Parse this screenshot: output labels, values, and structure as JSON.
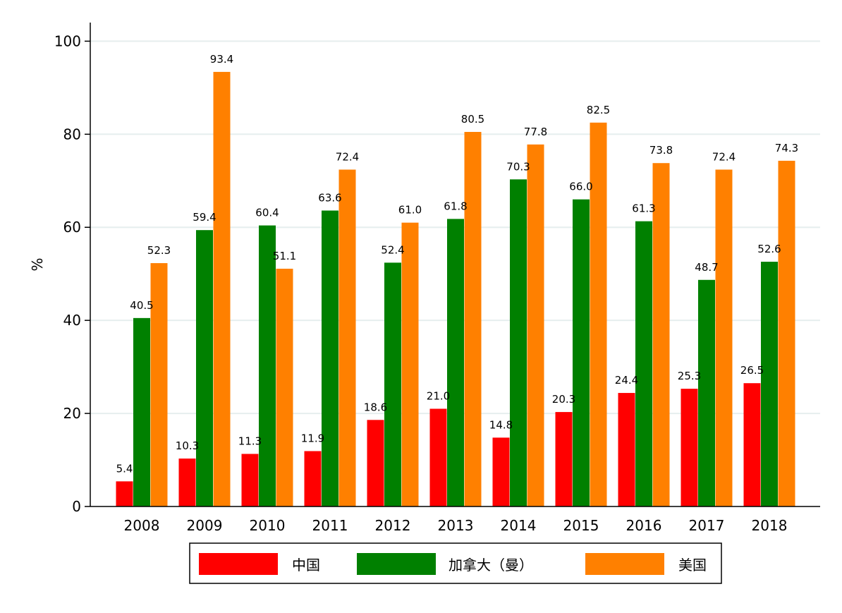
{
  "chart_data": {
    "type": "bar",
    "categories": [
      "2008",
      "2009",
      "2010",
      "2011",
      "2012",
      "2013",
      "2014",
      "2015",
      "2016",
      "2017",
      "2018"
    ],
    "series": [
      {
        "name": "中国",
        "color": "#ff0000",
        "values": [
          5.4,
          10.3,
          11.3,
          11.9,
          18.6,
          21.0,
          14.8,
          20.3,
          24.4,
          25.3,
          26.5
        ],
        "labels": [
          "5.4",
          "10.3",
          "11.3",
          "11.9",
          "18.6",
          "21.0",
          "14.8",
          "20.3",
          "24.4",
          "25.3",
          "26.5"
        ]
      },
      {
        "name": "加拿大（曼）",
        "color": "#008000",
        "values": [
          40.5,
          59.4,
          60.4,
          63.6,
          52.4,
          61.8,
          70.3,
          66.0,
          61.3,
          48.7,
          52.6
        ],
        "labels": [
          "40.5",
          "59.4",
          "60.4",
          "63.6",
          "52.4",
          "61.8",
          "70.3",
          "66.0",
          "61.3",
          "48.7",
          "52.6"
        ]
      },
      {
        "name": "美国",
        "color": "#ff8000",
        "values": [
          52.3,
          93.4,
          51.1,
          72.4,
          61.0,
          80.5,
          77.8,
          82.5,
          73.8,
          72.4,
          74.3
        ],
        "labels": [
          "52.3",
          "93.4",
          "51.1",
          "72.4",
          "61.0",
          "80.5",
          "77.8",
          "82.5",
          "73.8",
          "72.4",
          "74.3"
        ]
      }
    ],
    "ylabel": "%",
    "ylim": [
      0,
      104
    ],
    "yticks": [
      0,
      20,
      40,
      60,
      80,
      100
    ],
    "ytick_labels": [
      "0",
      "20",
      "40",
      "60",
      "80",
      "100"
    ],
    "grid": true,
    "legend_position": "bottom"
  }
}
